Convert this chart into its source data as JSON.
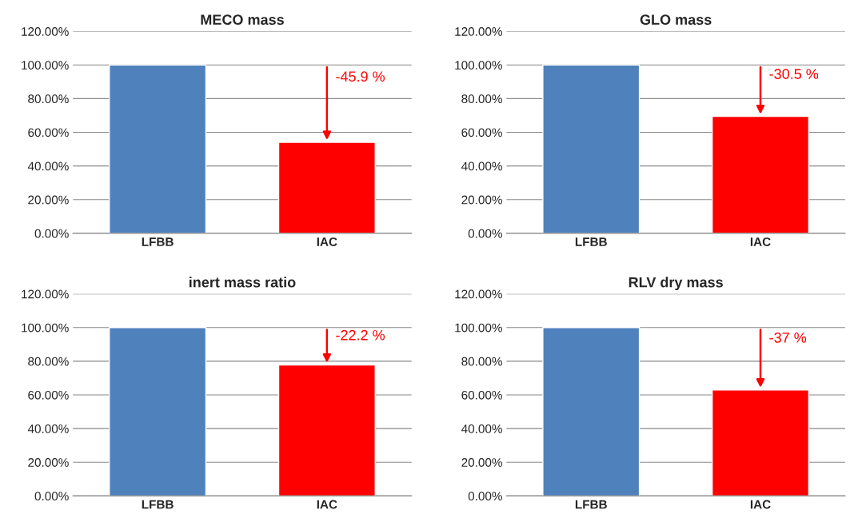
{
  "chart_data": [
    {
      "type": "bar",
      "title": "MECO mass",
      "categories": [
        "LFBB",
        "IAC"
      ],
      "values": [
        100,
        54.1
      ],
      "colors": [
        "#4f81bd",
        "#ff0000"
      ],
      "ylim": [
        0,
        120
      ],
      "yticks": [
        {
          "value": 0,
          "label": "0.00%"
        },
        {
          "value": 20,
          "label": "20.00%"
        },
        {
          "value": 40,
          "label": "40.00%"
        },
        {
          "value": 60,
          "label": "60.00%"
        },
        {
          "value": 80,
          "label": "80.00%"
        },
        {
          "value": 100,
          "label": "100.00%"
        },
        {
          "value": 120,
          "label": "120.00%"
        }
      ],
      "grid": "y",
      "annotations": [
        {
          "text": "-45.9 %",
          "x": "IAC",
          "y": 54.1
        }
      ]
    },
    {
      "type": "bar",
      "title": "GLO mass",
      "categories": [
        "LFBB",
        "IAC"
      ],
      "values": [
        100,
        69.5
      ],
      "colors": [
        "#4f81bd",
        "#ff0000"
      ],
      "ylim": [
        0,
        120
      ],
      "yticks": [
        {
          "value": 0,
          "label": "0.00%"
        },
        {
          "value": 20,
          "label": "20.00%"
        },
        {
          "value": 40,
          "label": "40.00%"
        },
        {
          "value": 60,
          "label": "60.00%"
        },
        {
          "value": 80,
          "label": "80.00%"
        },
        {
          "value": 100,
          "label": "100.00%"
        },
        {
          "value": 120,
          "label": "120.00%"
        }
      ],
      "grid": "y",
      "annotations": [
        {
          "text": "-30.5 %",
          "x": "IAC",
          "y": 69.5
        }
      ]
    },
    {
      "type": "bar",
      "title": "inert mass ratio",
      "categories": [
        "LFBB",
        "IAC"
      ],
      "values": [
        100,
        77.8
      ],
      "colors": [
        "#4f81bd",
        "#ff0000"
      ],
      "ylim": [
        0,
        120
      ],
      "yticks": [
        {
          "value": 0,
          "label": "0.00%"
        },
        {
          "value": 20,
          "label": "20.00%"
        },
        {
          "value": 40,
          "label": "40.00%"
        },
        {
          "value": 60,
          "label": "60.00%"
        },
        {
          "value": 80,
          "label": "80.00%"
        },
        {
          "value": 100,
          "label": "100.00%"
        },
        {
          "value": 120,
          "label": "120.00%"
        }
      ],
      "grid": "y",
      "annotations": [
        {
          "text": "-22.2 %",
          "x": "IAC",
          "y": 77.8
        }
      ]
    },
    {
      "type": "bar",
      "title": "RLV dry mass",
      "categories": [
        "LFBB",
        "IAC"
      ],
      "values": [
        100,
        63
      ],
      "colors": [
        "#4f81bd",
        "#ff0000"
      ],
      "ylim": [
        0,
        120
      ],
      "yticks": [
        {
          "value": 0,
          "label": "0.00%"
        },
        {
          "value": 20,
          "label": "20.00%"
        },
        {
          "value": 40,
          "label": "40.00%"
        },
        {
          "value": 60,
          "label": "60.00%"
        },
        {
          "value": 80,
          "label": "80.00%"
        },
        {
          "value": 100,
          "label": "100.00%"
        },
        {
          "value": 120,
          "label": "120.00%"
        }
      ],
      "grid": "y",
      "annotations": [
        {
          "text": "-37 %",
          "x": "IAC",
          "y": 63
        }
      ]
    }
  ]
}
